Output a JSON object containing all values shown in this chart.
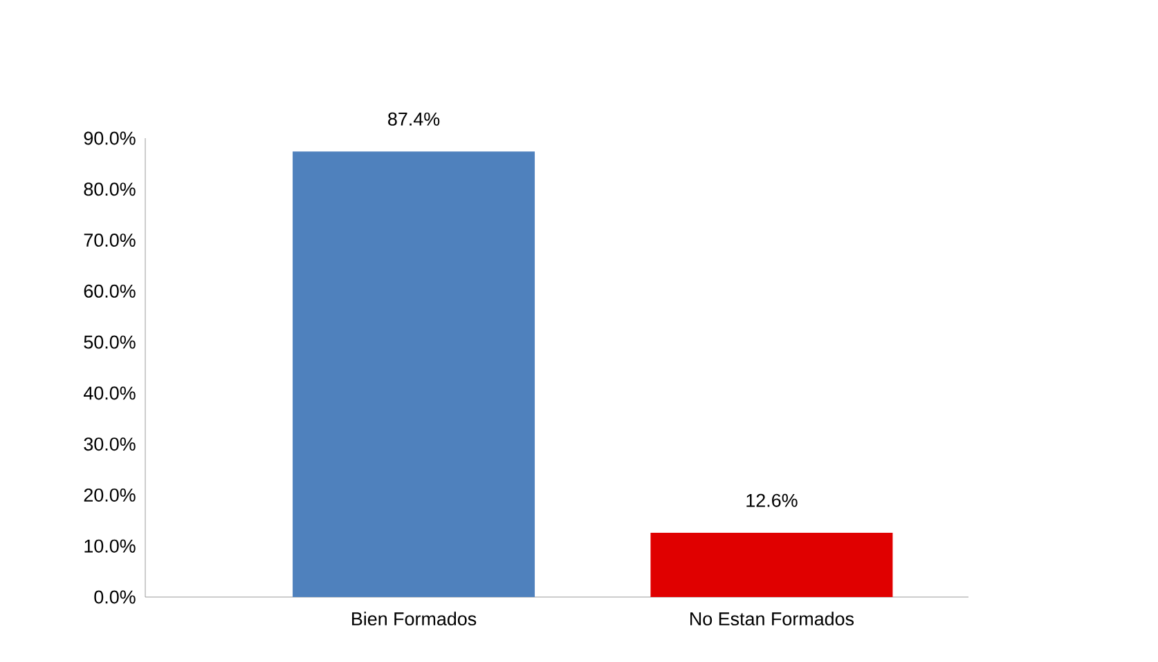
{
  "chart_data": {
    "type": "bar",
    "categories": [
      "Bien Formados",
      "No Estan Formados"
    ],
    "values": [
      87.4,
      12.6
    ],
    "colors": [
      "#4f81bd",
      "#e00000"
    ],
    "value_labels": [
      "87.4%",
      "12.6%"
    ],
    "ylim": [
      0,
      90
    ],
    "yticks": [
      {
        "value": 0,
        "label": "0.0%"
      },
      {
        "value": 10,
        "label": "10.0%"
      },
      {
        "value": 20,
        "label": "20.0%"
      },
      {
        "value": 30,
        "label": "30.0%"
      },
      {
        "value": 40,
        "label": "40.0%"
      },
      {
        "value": 50,
        "label": "50.0%"
      },
      {
        "value": 60,
        "label": "60.0%"
      },
      {
        "value": 70,
        "label": "70.0%"
      },
      {
        "value": 80,
        "label": "80.0%"
      },
      {
        "value": 90,
        "label": "90.0%"
      }
    ],
    "grid": false
  }
}
